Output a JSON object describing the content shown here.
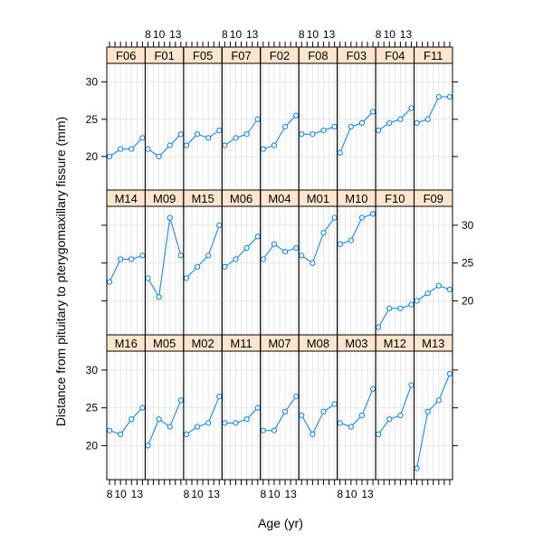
{
  "chart_data": {
    "type": "line",
    "layout": "lattice 9 columns x 3 rows",
    "xlabel": "Age (yr)",
    "ylabel": "Distance from pituitary to pterygomaxillary fissure (mm)",
    "x_tick_labels": [
      "8",
      "10",
      "13"
    ],
    "y_tick_labels": [
      "20",
      "25",
      "30"
    ],
    "x": [
      8,
      10,
      12,
      14
    ],
    "xlim": [
      7.5,
      14.5
    ],
    "ylim": [
      15.5,
      32.5
    ],
    "grid": true,
    "colors": {
      "line": "#0080ff",
      "strip_bg": "#ffe5cc",
      "grid": "#e6e6e6"
    },
    "rows": [
      [
        {
          "name": "F06",
          "values": [
            20.0,
            21.0,
            21.0,
            22.5
          ]
        },
        {
          "name": "F01",
          "values": [
            21.0,
            20.0,
            21.5,
            23.0
          ]
        },
        {
          "name": "F05",
          "values": [
            21.5,
            23.0,
            22.5,
            23.5
          ]
        },
        {
          "name": "F07",
          "values": [
            21.5,
            22.5,
            23.0,
            25.0
          ]
        },
        {
          "name": "F02",
          "values": [
            21.0,
            21.5,
            24.0,
            25.5
          ]
        },
        {
          "name": "F08",
          "values": [
            23.0,
            23.0,
            23.5,
            24.0
          ]
        },
        {
          "name": "F03",
          "values": [
            20.5,
            24.0,
            24.5,
            26.0
          ]
        },
        {
          "name": "F04",
          "values": [
            23.5,
            24.5,
            25.0,
            26.5
          ]
        },
        {
          "name": "F11",
          "values": [
            24.5,
            25.0,
            28.0,
            28.0
          ]
        }
      ],
      [
        {
          "name": "M14",
          "values": [
            22.5,
            25.5,
            25.5,
            26.0
          ]
        },
        {
          "name": "M09",
          "values": [
            23.0,
            20.5,
            31.0,
            26.0
          ]
        },
        {
          "name": "M15",
          "values": [
            23.0,
            24.5,
            26.0,
            30.0
          ]
        },
        {
          "name": "M06",
          "values": [
            24.5,
            25.5,
            27.0,
            28.5
          ]
        },
        {
          "name": "M04",
          "values": [
            25.5,
            27.5,
            26.5,
            27.0
          ]
        },
        {
          "name": "M01",
          "values": [
            26.0,
            25.0,
            29.0,
            31.0
          ]
        },
        {
          "name": "M10",
          "values": [
            27.5,
            28.0,
            31.0,
            31.5
          ]
        },
        {
          "name": "F10",
          "values": [
            16.5,
            19.0,
            19.0,
            19.5
          ]
        },
        {
          "name": "F09",
          "values": [
            20.0,
            21.0,
            22.0,
            21.5
          ]
        }
      ],
      [
        {
          "name": "M16",
          "values": [
            22.0,
            21.5,
            23.5,
            25.0
          ]
        },
        {
          "name": "M05",
          "values": [
            20.0,
            23.5,
            22.5,
            26.0
          ]
        },
        {
          "name": "M02",
          "values": [
            21.5,
            22.5,
            23.0,
            26.5
          ]
        },
        {
          "name": "M11",
          "values": [
            23.0,
            23.0,
            23.5,
            25.0
          ]
        },
        {
          "name": "M07",
          "values": [
            22.0,
            22.0,
            24.5,
            26.5
          ]
        },
        {
          "name": "M08",
          "values": [
            24.0,
            21.5,
            24.5,
            25.5
          ]
        },
        {
          "name": "M03",
          "values": [
            23.0,
            22.5,
            24.0,
            27.5
          ]
        },
        {
          "name": "M12",
          "values": [
            21.5,
            23.5,
            24.0,
            28.0
          ]
        },
        {
          "name": "M13",
          "values": [
            17.0,
            24.5,
            26.0,
            29.5
          ]
        }
      ]
    ]
  }
}
